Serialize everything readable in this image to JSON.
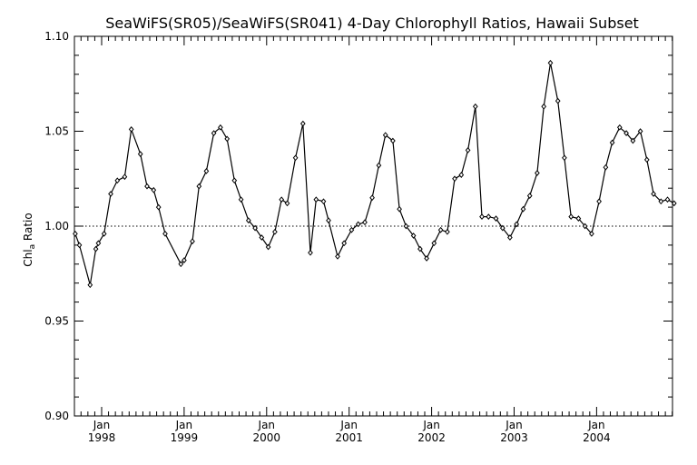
{
  "chart_data": {
    "type": "line",
    "title": "SeaWiFS(SR05)/SeaWiFS(SR041) 4-Day Chlorophyll Ratios, Hawaii Subset",
    "ylabel": "Chl",
    "ylabel_subscript": "a",
    "ylabel_suffix": " Ratio",
    "xlabel": "",
    "ylim": [
      0.9,
      1.1
    ],
    "y_ticks": [
      "0.90",
      "0.95",
      "1.00",
      "1.05",
      "1.10"
    ],
    "y_tick_values": [
      0.9,
      0.95,
      1.0,
      1.05,
      1.1
    ],
    "x_range": [
      1997.67,
      2004.92
    ],
    "x_ticks": [
      {
        "x": 1998.0,
        "month": "Jan",
        "year": "1998"
      },
      {
        "x": 1999.0,
        "month": "Jan",
        "year": "1999"
      },
      {
        "x": 2000.0,
        "month": "Jan",
        "year": "2000"
      },
      {
        "x": 2001.0,
        "month": "Jan",
        "year": "2001"
      },
      {
        "x": 2002.0,
        "month": "Jan",
        "year": "2002"
      },
      {
        "x": 2003.0,
        "month": "Jan",
        "year": "2003"
      },
      {
        "x": 2004.0,
        "month": "Jan",
        "year": "2004"
      }
    ],
    "reference_line": 1.0,
    "grid": false,
    "series": [
      {
        "x": [
          1997.68,
          1997.73,
          1997.86,
          1997.93,
          1997.96,
          1998.03,
          1998.11,
          1998.19,
          1998.28,
          1998.36,
          1998.47,
          1998.55,
          1998.63,
          1998.69,
          1998.77,
          1998.96,
          1999.0,
          1999.1,
          1999.18,
          1999.27,
          1999.36,
          1999.44,
          1999.52,
          1999.61,
          1999.69,
          1999.78,
          1999.86,
          1999.94,
          2000.02,
          2000.1,
          2000.18,
          2000.25,
          2000.35,
          2000.44,
          2000.53,
          2000.6,
          2000.69,
          2000.75,
          2000.86,
          2000.94,
          2001.03,
          2001.11,
          2001.19,
          2001.28,
          2001.36,
          2001.44,
          2001.53,
          2001.61,
          2001.69,
          2001.78,
          2001.86,
          2001.94,
          2002.03,
          2002.11,
          2002.19,
          2002.28,
          2002.36,
          2002.44,
          2002.53,
          2002.61,
          2002.69,
          2002.78,
          2002.86,
          2002.95,
          2003.03,
          2003.11,
          2003.19,
          2003.28,
          2003.36,
          2003.44,
          2003.53,
          2003.61,
          2003.69,
          2003.78,
          2003.86,
          2003.94,
          2004.03,
          2004.11,
          2004.19,
          2004.28,
          2004.36,
          2004.44,
          2004.53,
          2004.61,
          2004.69,
          2004.78,
          2004.86,
          2004.94
        ],
        "values": [
          0.996,
          0.99,
          0.969,
          0.988,
          0.991,
          0.996,
          1.017,
          1.024,
          1.026,
          1.051,
          1.038,
          1.021,
          1.019,
          1.01,
          0.996,
          0.98,
          0.982,
          0.992,
          1.021,
          1.029,
          1.049,
          1.052,
          1.046,
          1.024,
          1.014,
          1.003,
          0.999,
          0.994,
          0.989,
          0.997,
          1.014,
          1.012,
          1.036,
          1.054,
          0.986,
          1.014,
          1.013,
          1.003,
          0.984,
          0.991,
          0.998,
          1.001,
          1.002,
          1.015,
          1.032,
          1.048,
          1.045,
          1.009,
          1.0,
          0.995,
          0.988,
          0.983,
          0.991,
          0.998,
          0.997,
          1.025,
          1.027,
          1.04,
          1.063,
          1.005,
          1.005,
          1.004,
          0.999,
          0.994,
          1.001,
          1.009,
          1.016,
          1.028,
          1.063,
          1.086,
          1.066,
          1.036,
          1.005,
          1.004,
          1.0,
          0.996,
          1.013,
          1.031,
          1.044,
          1.052,
          1.049,
          1.045,
          1.05,
          1.035,
          1.017,
          1.013,
          1.014,
          1.012
        ]
      }
    ]
  }
}
